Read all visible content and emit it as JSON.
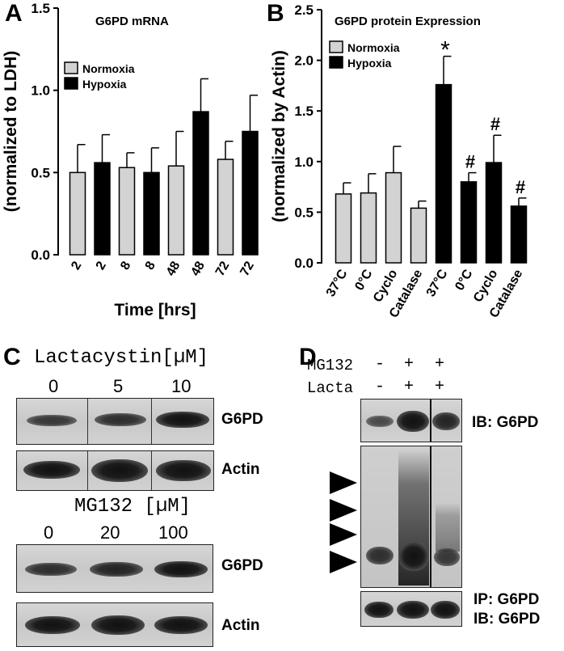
{
  "panels": {
    "a": "A",
    "b": "B",
    "c": "C",
    "d": "D"
  },
  "chart_data": [
    {
      "type": "bar",
      "title": "G6PD mRNA",
      "ylabel": "(normalized to LDH)",
      "xlabel": "Time [hrs]",
      "ylim": [
        0,
        1.5
      ],
      "yticks": [
        "0.0",
        "0.5",
        "1.0",
        "1.5"
      ],
      "categories": [
        "2",
        "2",
        "8",
        "8",
        "48",
        "48",
        "72",
        "72"
      ],
      "values": [
        0.5,
        0.56,
        0.53,
        0.5,
        0.54,
        0.87,
        0.58,
        0.75
      ],
      "errors": [
        0.17,
        0.17,
        0.09,
        0.15,
        0.21,
        0.2,
        0.11,
        0.22
      ],
      "groups": [
        "Normoxia",
        "Hypoxia",
        "Normoxia",
        "Hypoxia",
        "Normoxia",
        "Hypoxia",
        "Normoxia",
        "Hypoxia"
      ],
      "legend": [
        {
          "name": "Normoxia",
          "color": "#d3d3d3"
        },
        {
          "name": "Hypoxia",
          "color": "#000000"
        }
      ],
      "legend_position": "upper-left"
    },
    {
      "type": "bar",
      "title": "G6PD protein Expression",
      "ylabel": "(normalized by Actin)",
      "ylim": [
        0,
        2.5
      ],
      "yticks": [
        "0.0",
        "0.5",
        "1.0",
        "1.5",
        "2.0",
        "2.5"
      ],
      "categories": [
        "37°C",
        "0°C",
        "Cyclo",
        "Catalase",
        "37°C",
        "0°C",
        "Cyclo",
        "Catalase"
      ],
      "values": [
        0.68,
        0.69,
        0.89,
        0.54,
        1.76,
        0.8,
        0.99,
        0.56
      ],
      "errors": [
        0.11,
        0.19,
        0.26,
        0.07,
        0.28,
        0.09,
        0.27,
        0.08
      ],
      "groups": [
        "Normoxia",
        "Normoxia",
        "Normoxia",
        "Normoxia",
        "Hypoxia",
        "Hypoxia",
        "Hypoxia",
        "Hypoxia"
      ],
      "annotations": [
        "",
        "",
        "",
        "",
        "*",
        "#",
        "#",
        "#"
      ],
      "legend": [
        {
          "name": "Normoxia",
          "color": "#d3d3d3"
        },
        {
          "name": "Hypoxia",
          "color": "#000000"
        }
      ],
      "legend_position": "upper-left"
    }
  ],
  "blots_c": {
    "lactacystin_header": "Lactacystin[µM]",
    "lactacystin_doses": [
      "0",
      "5",
      "10"
    ],
    "mg132_header": "MG132 [µM]",
    "mg132_doses": [
      "0",
      "20",
      "100"
    ],
    "labels": [
      "G6PD",
      "Actin",
      "G6PD",
      "Actin"
    ]
  },
  "blots_d": {
    "rows": [
      {
        "name": "MG132",
        "signs": [
          "-",
          "+",
          "+"
        ]
      },
      {
        "name": "Lacta",
        "signs": [
          "-",
          "+",
          "+"
        ]
      }
    ],
    "ib_top": "IB: G6PD",
    "ip_label": "IP: G6PD",
    "ib_bottom": "IB: G6PD",
    "arrow_count": 4
  }
}
